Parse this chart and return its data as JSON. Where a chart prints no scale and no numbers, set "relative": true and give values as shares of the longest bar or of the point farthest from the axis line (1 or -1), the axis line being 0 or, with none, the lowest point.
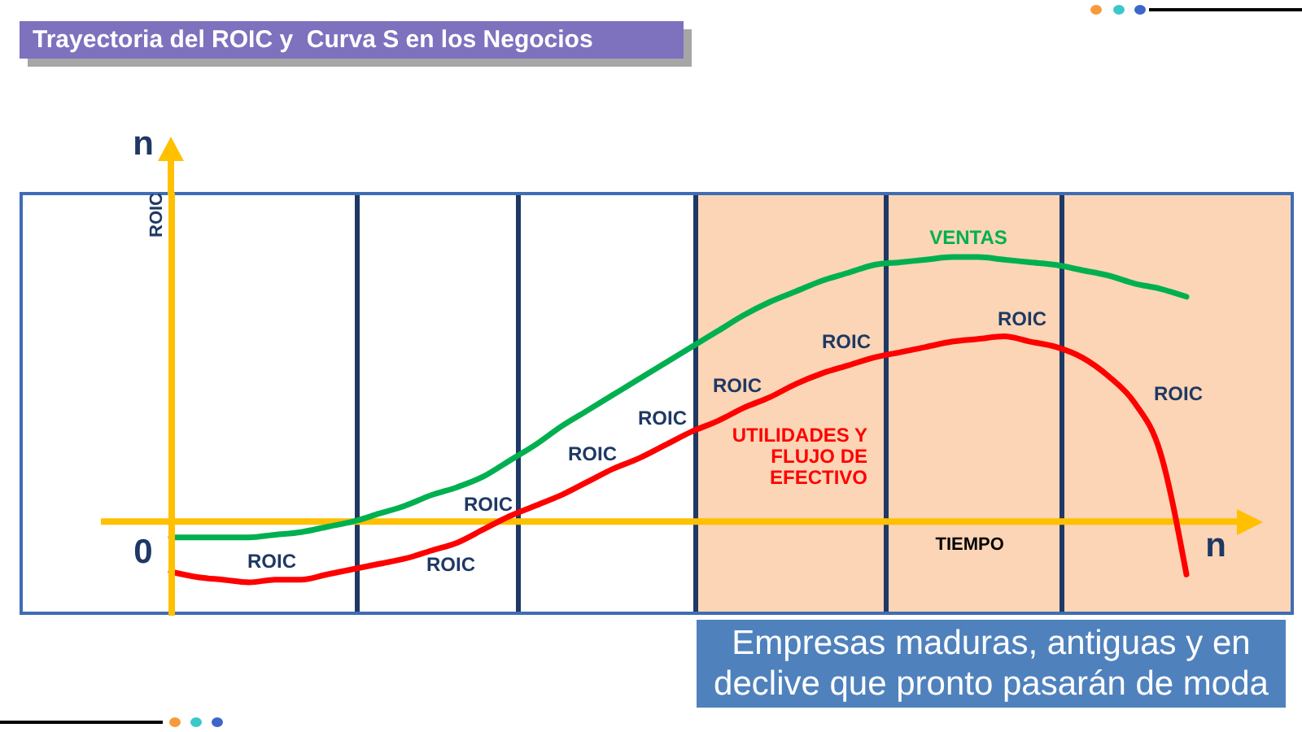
{
  "chart_data": {
    "type": "line",
    "title": "Trayectoria del ROIC y  Curva S en los Negocios",
    "xlabel": "TIEMPO",
    "ylabel": "ROIC",
    "relative": true,
    "categories": [
      null,
      null,
      null,
      null,
      null,
      null,
      null,
      null,
      null,
      null,
      null,
      null,
      null,
      null,
      null,
      null,
      null,
      null,
      null,
      null,
      null,
      null,
      null,
      null,
      null,
      null,
      null,
      null,
      null,
      null,
      null,
      null,
      null,
      null,
      null,
      null,
      null,
      null,
      null,
      null
    ],
    "series": [
      {
        "name": "VENTAS",
        "color": "#00b050",
        "values": [
          -0.06,
          -0.06,
          -0.06,
          -0.06,
          -0.05,
          -0.04,
          -0.02,
          0.0,
          0.03,
          0.06,
          0.1,
          0.13,
          0.17,
          0.23,
          0.29,
          0.36,
          0.42,
          0.48,
          0.54,
          0.6,
          0.66,
          0.72,
          0.78,
          0.83,
          0.87,
          0.91,
          0.94,
          0.97,
          0.98,
          0.99,
          1.0,
          1.0,
          0.99,
          0.98,
          0.97,
          0.95,
          0.93,
          0.9,
          0.88,
          0.85
        ]
      },
      {
        "name": "UTILIDADES Y FLUJO DE EFECTIVO",
        "color": "#ff0000",
        "values": [
          -0.19,
          -0.21,
          -0.22,
          -0.23,
          -0.22,
          -0.22,
          -0.2,
          -0.18,
          -0.16,
          -0.14,
          -0.11,
          -0.08,
          -0.03,
          0.02,
          0.06,
          0.1,
          0.15,
          0.2,
          0.24,
          0.29,
          0.34,
          0.38,
          0.43,
          0.47,
          0.52,
          0.56,
          0.59,
          0.62,
          0.64,
          0.66,
          0.68,
          0.69,
          0.7,
          0.68,
          0.66,
          0.62,
          0.55,
          0.45,
          0.26,
          -0.2
        ]
      }
    ],
    "ref_lines": [
      {
        "axis": "y",
        "value": 0,
        "color": "#ffc000"
      }
    ],
    "annotations": [
      "n",
      "n",
      "0",
      "ROIC",
      "ROIC",
      "ROIC",
      "ROIC",
      "ROIC",
      "ROIC",
      "ROIC",
      "ROIC",
      "ROIC",
      "Empresas maduras, antiguas y en declive que pronto pasarán de moda"
    ]
  }
}
